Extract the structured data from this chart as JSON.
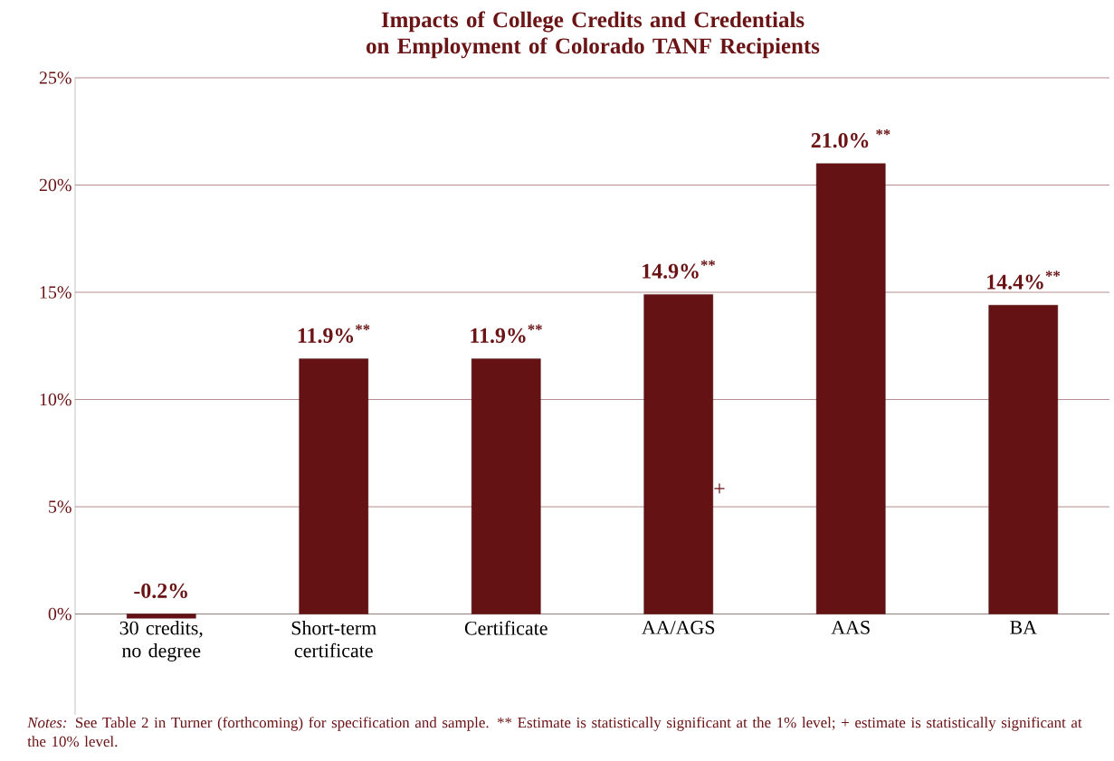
{
  "chart_data": {
    "type": "bar",
    "title": "Impacts of College Credits and Credentials on Employment of Colorado TANF Recipients",
    "categories": [
      "30 credits, no degree",
      "Short-term certificate",
      "Certificate",
      "AA/AGS",
      "AAS",
      "BA"
    ],
    "values": [
      -0.2,
      11.9,
      11.9,
      14.9,
      21.0,
      14.4
    ],
    "value_labels": [
      "-0.2%",
      "11.9%$^{**}$",
      "11.9%$^{**}$",
      "14.9%$^{**}$",
      "21.0% $^{**}$",
      "14.4%$^{**}$"
    ],
    "color": "#641214",
    "ylim": [
      -4.7,
      25
    ],
    "yticks": [
      {
        "value": 0,
        "label": "0%"
      },
      {
        "value": 5,
        "label": "5%"
      },
      {
        "value": 10,
        "label": "10%"
      },
      {
        "value": 15,
        "label": "15%"
      },
      {
        "value": 20,
        "label": "20%"
      },
      {
        "value": 25,
        "label": "25%"
      }
    ],
    "grid": "y",
    "annotations": [
      "+",
      "Notes:",
      "See Table 2 in Turner (forthcoming) for specification and sample. ** Estimate is statistically significant at the 1% level; + estimate is statistically significant at the 10% level."
    ]
  }
}
